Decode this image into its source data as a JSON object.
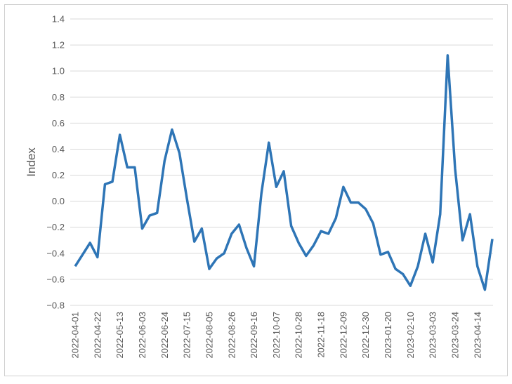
{
  "chart_data": {
    "type": "line",
    "y_label": "Index",
    "categories": [
      "2022-04-01",
      null,
      null,
      "2022-04-22",
      null,
      null,
      "2022-05-13",
      null,
      null,
      "2022-06-03",
      null,
      null,
      "2022-06-24",
      null,
      null,
      "2022-07-15",
      null,
      null,
      "2022-08-05",
      null,
      null,
      "2022-08-26",
      null,
      null,
      "2022-09-16",
      null,
      null,
      "2022-10-07",
      null,
      null,
      "2022-10-28",
      null,
      null,
      "2022-11-18",
      null,
      null,
      "2022-12-09",
      null,
      null,
      "2022-12-30",
      null,
      null,
      "2023-01-20",
      null,
      null,
      "2023-02-10",
      null,
      null,
      "2023-03-03",
      null,
      null,
      "2023-03-24",
      null,
      null,
      "2023-04-14",
      null,
      null
    ],
    "series": [
      {
        "color": "#2e75b6",
        "values": [
          -0.5,
          -0.41,
          -0.32,
          -0.43,
          0.13,
          0.15,
          0.51,
          0.26,
          0.26,
          -0.21,
          -0.11,
          -0.09,
          0.31,
          0.55,
          0.37,
          0.02,
          -0.31,
          -0.21,
          -0.52,
          -0.44,
          -0.4,
          -0.25,
          -0.18,
          -0.36,
          -0.5,
          0.06,
          0.45,
          0.11,
          0.23,
          -0.19,
          -0.32,
          -0.42,
          -0.34,
          -0.23,
          -0.25,
          -0.13,
          0.11,
          -0.01,
          -0.01,
          -0.06,
          -0.17,
          -0.41,
          -0.39,
          -0.52,
          -0.56,
          -0.65,
          -0.5,
          -0.25,
          -0.47,
          -0.1,
          1.12,
          0.25,
          -0.3,
          -0.1,
          -0.5,
          -0.68,
          -0.29
        ]
      }
    ],
    "ylim": [
      -0.8,
      1.4
    ],
    "yticks": [
      {
        "value": -0.8,
        "label": "−0.8"
      },
      {
        "value": -0.6,
        "label": "−0.6"
      },
      {
        "value": -0.4,
        "label": "−0.4"
      },
      {
        "value": -0.2,
        "label": "−0.2"
      },
      {
        "value": 0,
        "label": "0.0"
      },
      0.2,
      0.4,
      0.6,
      0.8,
      {
        "value": 1,
        "label": "1.0"
      },
      1.2,
      1.4
    ],
    "grid": true
  }
}
